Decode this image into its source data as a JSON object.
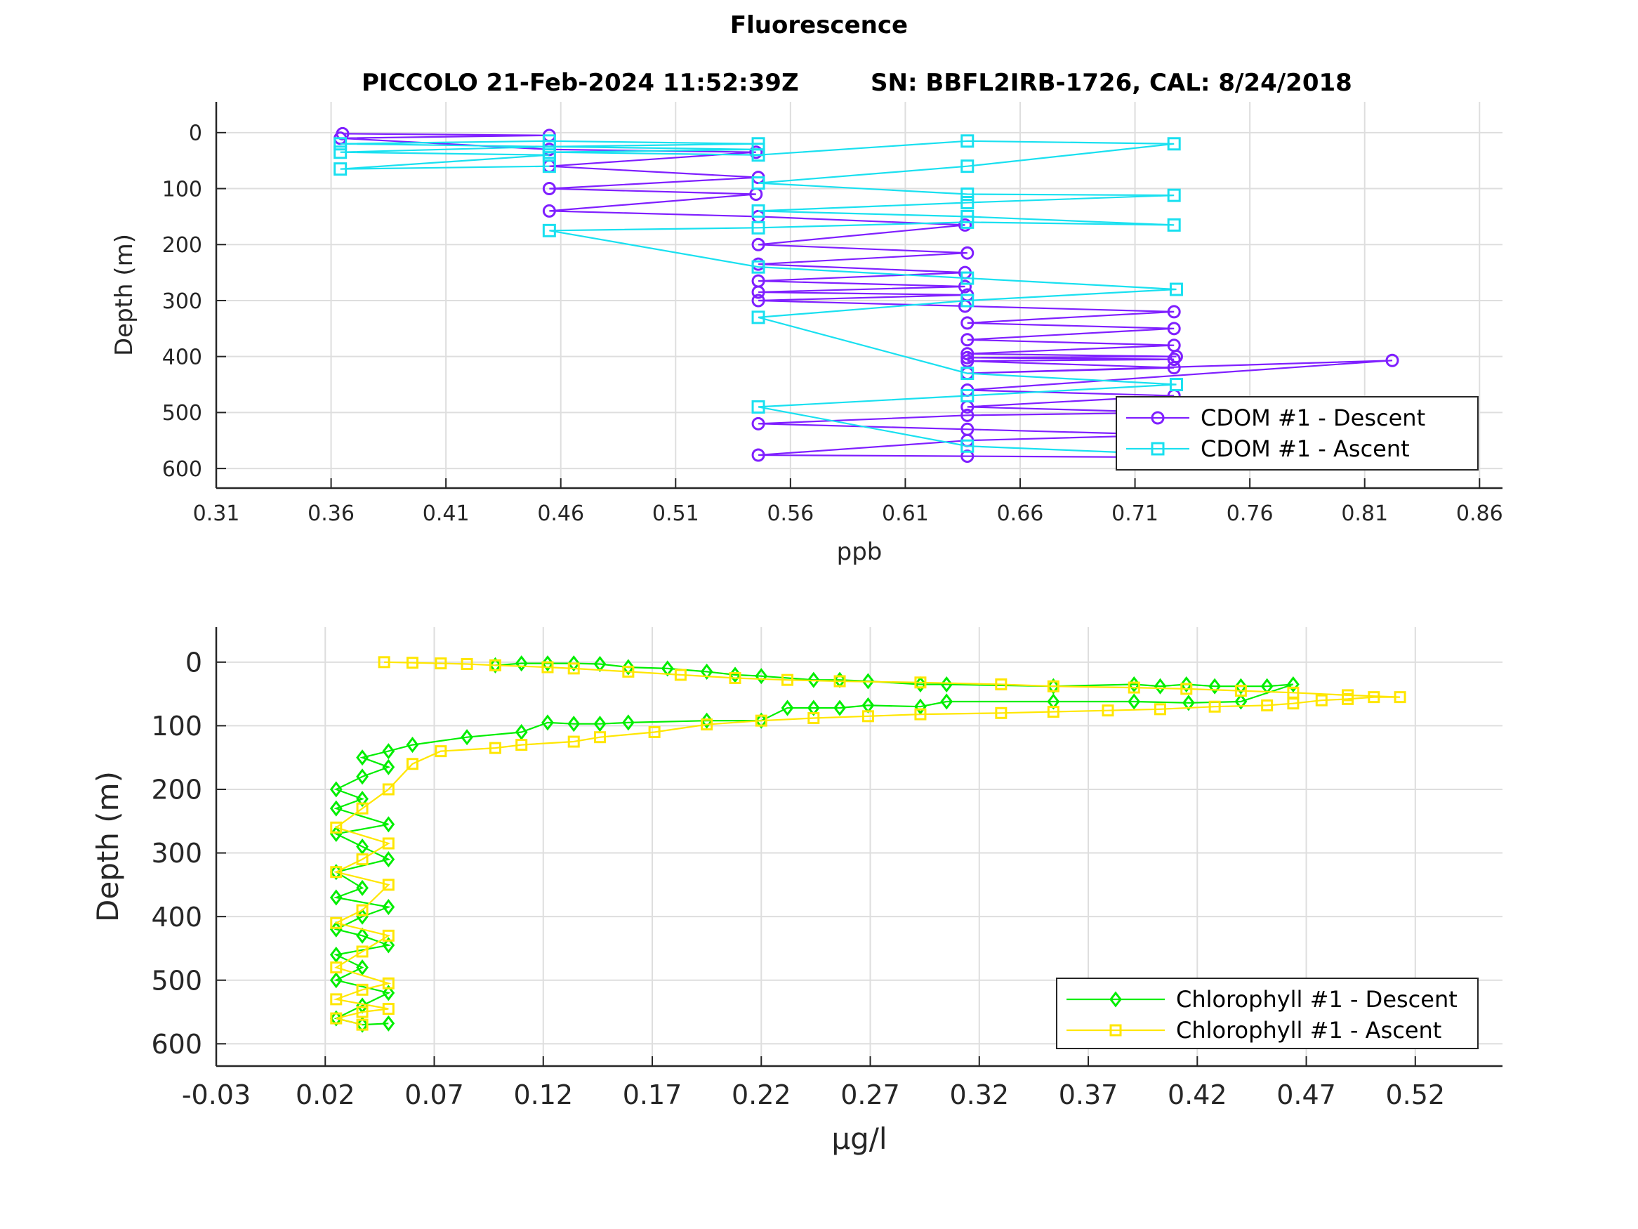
{
  "figure": {
    "title": "Fluorescence",
    "subtitle_left": "PICCOLO 21-Feb-2024 11:52:39Z",
    "subtitle_right": "SN: BBFL2IRB-1726, CAL: 8/24/2018"
  },
  "colors": {
    "cdom_descent": "#7f1fff",
    "cdom_ascent": "#19e0f0",
    "chl_descent": "#00ee00",
    "chl_ascent": "#ffe600",
    "axis": "#262626",
    "grid": "#dedede"
  },
  "chart_data": [
    {
      "type": "line",
      "xlabel": "ppb",
      "ylabel": "Depth (m)",
      "xlim": [
        0.31,
        0.87
      ],
      "ylim": [
        -55,
        635
      ],
      "y_reversed": true,
      "x_ticks": [
        "0.31",
        "0.36",
        "0.41",
        "0.46",
        "0.51",
        "0.56",
        "0.61",
        "0.66",
        "0.71",
        "0.76",
        "0.81",
        "0.86"
      ],
      "y_ticks": [
        "0",
        "100",
        "200",
        "300",
        "400",
        "500",
        "600"
      ],
      "grid": true,
      "legend_position": "bottom-right",
      "series": [
        {
          "name": "CDOM #1 - Descent",
          "marker": "circle",
          "x": [
            0.365,
            0.455,
            0.364,
            0.455,
            0.545,
            0.455,
            0.546,
            0.455,
            0.545,
            0.455,
            0.546,
            0.636,
            0.546,
            0.637,
            0.546,
            0.636,
            0.546,
            0.636,
            0.546,
            0.637,
            0.546,
            0.636,
            0.727,
            0.637,
            0.727,
            0.637,
            0.727,
            0.637,
            0.728,
            0.637,
            0.727,
            0.637,
            0.727,
            0.637,
            0.822,
            0.637,
            0.727,
            0.637,
            0.727,
            0.637,
            0.546,
            0.637,
            0.727,
            0.637,
            0.546,
            0.637,
            0.728
          ],
          "y": [
            2,
            5,
            10,
            30,
            35,
            60,
            80,
            100,
            110,
            140,
            150,
            165,
            200,
            215,
            235,
            250,
            265,
            275,
            285,
            290,
            300,
            310,
            320,
            340,
            350,
            370,
            380,
            395,
            400,
            402,
            405,
            408,
            420,
            430,
            407,
            460,
            470,
            490,
            500,
            505,
            520,
            530,
            540,
            550,
            576,
            578,
            580
          ]
        },
        {
          "name": "CDOM #1 - Ascent",
          "marker": "square",
          "x": [
            0.728,
            0.637,
            0.546,
            0.637,
            0.728,
            0.637,
            0.546,
            0.637,
            0.728,
            0.637,
            0.546,
            0.455,
            0.546,
            0.637,
            0.727,
            0.637,
            0.546,
            0.637,
            0.727,
            0.637,
            0.546,
            0.637,
            0.727,
            0.637,
            0.546,
            0.455,
            0.546,
            0.455,
            0.546,
            0.455,
            0.364,
            0.455,
            0.364,
            0.455,
            0.364,
            0.455
          ],
          "y": [
            575,
            560,
            490,
            470,
            450,
            430,
            330,
            300,
            280,
            260,
            240,
            175,
            170,
            160,
            165,
            150,
            140,
            125,
            112,
            110,
            90,
            60,
            20,
            15,
            40,
            35,
            30,
            25,
            20,
            15,
            20,
            25,
            35,
            40,
            65,
            60
          ]
        }
      ]
    },
    {
      "type": "line",
      "xlabel": "μg/l",
      "ylabel": "Depth (m)",
      "xlim": [
        -0.03,
        0.56
      ],
      "ylim": [
        -55,
        635
      ],
      "y_reversed": true,
      "x_ticks": [
        "-0.03",
        "0.02",
        "0.07",
        "0.12",
        "0.17",
        "0.22",
        "0.27",
        "0.32",
        "0.37",
        "0.42",
        "0.47",
        "0.52"
      ],
      "y_ticks": [
        "0",
        "100",
        "200",
        "300",
        "400",
        "500",
        "600"
      ],
      "grid": true,
      "legend_position": "bottom-right",
      "series": [
        {
          "name": "Chlorophyll #1 - Descent",
          "marker": "diamond",
          "x": [
            0.098,
            0.11,
            0.122,
            0.134,
            0.146,
            0.159,
            0.177,
            0.195,
            0.208,
            0.22,
            0.244,
            0.256,
            0.269,
            0.293,
            0.305,
            0.354,
            0.391,
            0.403,
            0.415,
            0.428,
            0.44,
            0.452,
            0.464,
            0.44,
            0.416,
            0.391,
            0.354,
            0.305,
            0.293,
            0.269,
            0.256,
            0.244,
            0.232,
            0.22,
            0.195,
            0.159,
            0.146,
            0.134,
            0.122,
            0.11,
            0.085,
            0.06,
            0.049,
            0.037,
            0.049,
            0.037,
            0.025,
            0.037,
            0.025,
            0.049,
            0.025,
            0.037,
            0.049,
            0.025,
            0.037,
            0.025,
            0.049,
            0.037,
            0.025,
            0.037,
            0.049,
            0.025,
            0.037,
            0.025,
            0.049,
            0.037,
            0.025,
            0.037,
            0.049
          ],
          "y": [
            5,
            2,
            2,
            2,
            3,
            8,
            10,
            15,
            20,
            22,
            28,
            28,
            30,
            35,
            35,
            38,
            35,
            38,
            35,
            38,
            38,
            38,
            35,
            62,
            64,
            62,
            62,
            62,
            70,
            68,
            72,
            72,
            72,
            92,
            92,
            95,
            97,
            97,
            95,
            110,
            118,
            130,
            140,
            150,
            165,
            180,
            200,
            215,
            230,
            255,
            270,
            290,
            310,
            330,
            355,
            370,
            385,
            400,
            420,
            430,
            445,
            460,
            480,
            500,
            520,
            540,
            560,
            570,
            568
          ]
        },
        {
          "name": "Chlorophyll #1 - Ascent",
          "marker": "square",
          "x": [
            0.037,
            0.025,
            0.037,
            0.049,
            0.025,
            0.037,
            0.049,
            0.025,
            0.037,
            0.049,
            0.025,
            0.037,
            0.049,
            0.025,
            0.037,
            0.049,
            0.025,
            0.037,
            0.049,
            0.06,
            0.073,
            0.098,
            0.11,
            0.134,
            0.146,
            0.171,
            0.195,
            0.22,
            0.244,
            0.269,
            0.293,
            0.33,
            0.354,
            0.379,
            0.403,
            0.428,
            0.452,
            0.464,
            0.477,
            0.489,
            0.501,
            0.513,
            0.489,
            0.464,
            0.44,
            0.415,
            0.391,
            0.354,
            0.33,
            0.293,
            0.256,
            0.232,
            0.208,
            0.183,
            0.159,
            0.134,
            0.122,
            0.098,
            0.085,
            0.073,
            0.06,
            0.047
          ],
          "y": [
            570,
            560,
            550,
            545,
            530,
            515,
            505,
            480,
            455,
            430,
            410,
            390,
            350,
            330,
            310,
            285,
            260,
            230,
            200,
            160,
            140,
            135,
            130,
            125,
            118,
            110,
            98,
            92,
            88,
            85,
            82,
            80,
            78,
            76,
            74,
            70,
            68,
            65,
            60,
            58,
            55,
            55,
            52,
            48,
            45,
            42,
            40,
            38,
            35,
            32,
            30,
            28,
            25,
            20,
            15,
            10,
            8,
            5,
            3,
            2,
            1,
            0
          ]
        }
      ]
    }
  ]
}
